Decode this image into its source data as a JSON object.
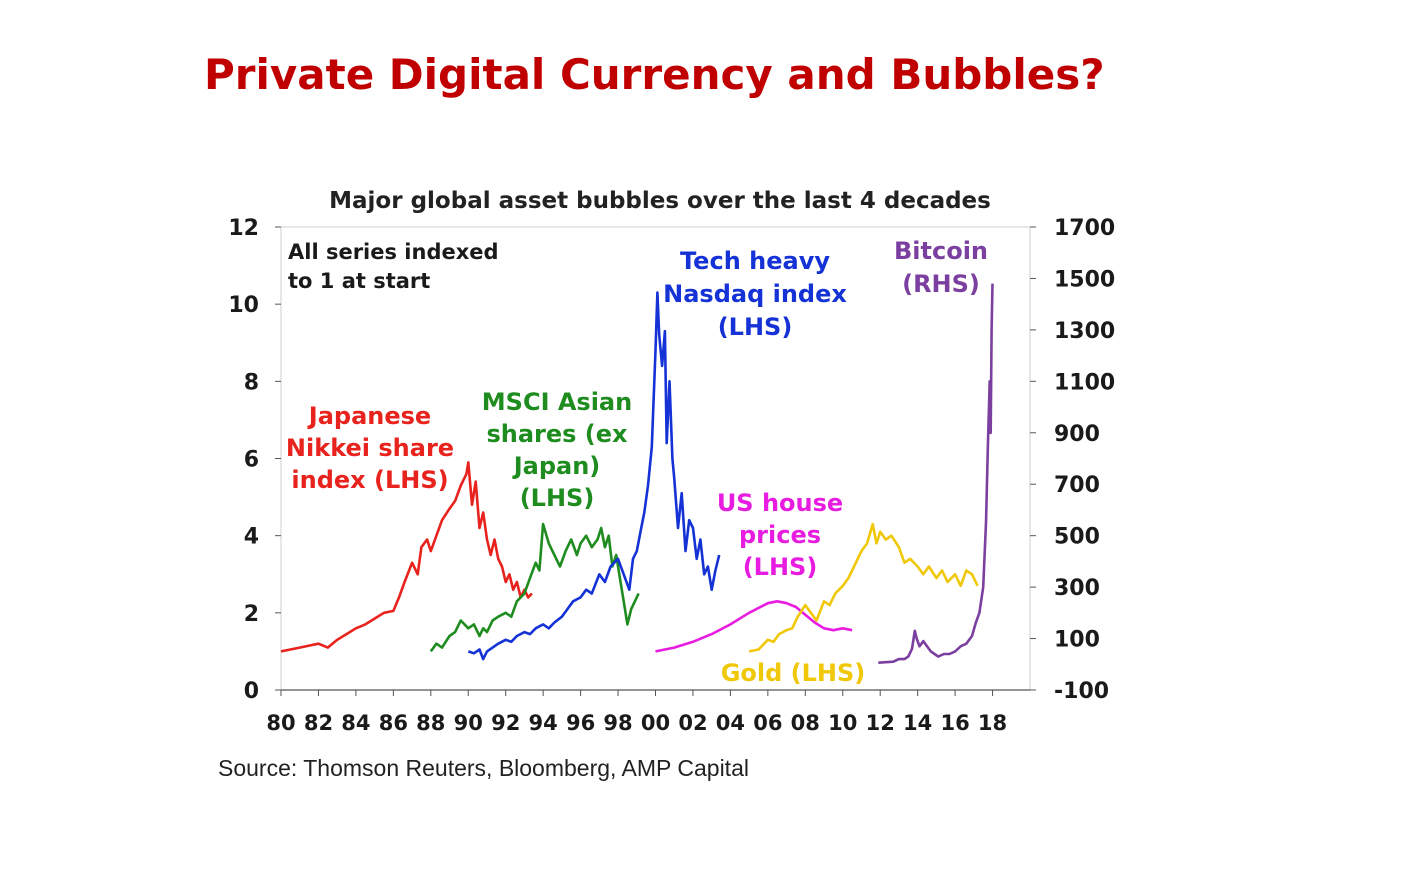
{
  "page": {
    "title": "Private Digital Currency and Bubbles?"
  },
  "chart_data": {
    "type": "line",
    "title": "Major global asset bubbles over the last 4 decades",
    "annotation_lines": [
      "All series indexed",
      "to 1 at start"
    ],
    "source": "Source: Thomson Reuters, Bloomberg, AMP Capital",
    "x_axis": {
      "range": [
        1980,
        2020
      ],
      "ticks": [
        1980,
        1982,
        1984,
        1986,
        1988,
        1990,
        1992,
        1994,
        1996,
        1998,
        2000,
        2002,
        2004,
        2006,
        2008,
        2010,
        2012,
        2014,
        2016,
        2018
      ],
      "tick_labels": [
        "80",
        "82",
        "84",
        "86",
        "88",
        "90",
        "92",
        "94",
        "96",
        "98",
        "00",
        "02",
        "04",
        "06",
        "08",
        "10",
        "12",
        "14",
        "16",
        "18"
      ]
    },
    "y_left": {
      "range": [
        0,
        12
      ],
      "ticks": [
        0,
        2,
        4,
        6,
        8,
        10,
        12
      ],
      "tick_labels": [
        "0",
        "2",
        "4",
        "6",
        "8",
        "10",
        "12"
      ]
    },
    "y_right": {
      "range": [
        -100,
        1700
      ],
      "ticks": [
        -100,
        100,
        300,
        500,
        700,
        900,
        1100,
        1300,
        1500,
        1700
      ],
      "tick_labels": [
        "-100",
        "100",
        "300",
        "500",
        "700",
        "900",
        "1100",
        "1300",
        "1500",
        "1700"
      ]
    },
    "grid": false,
    "series": [
      {
        "name": "Japanese Nikkei share index (LHS)",
        "label_lines": [
          "Japanese",
          "Nikkei share",
          "index (LHS)"
        ],
        "color": "#e8221c",
        "axis": "left",
        "x": [
          1980,
          1980.5,
          1981,
          1981.5,
          1982,
          1982.5,
          1983,
          1983.5,
          1984,
          1984.5,
          1985,
          1985.5,
          1986,
          1986.3,
          1986.6,
          1987,
          1987.3,
          1987.5,
          1987.8,
          1988,
          1988.3,
          1988.6,
          1989,
          1989.3,
          1989.6,
          1989.9,
          1990,
          1990.2,
          1990.4,
          1990.6,
          1990.8,
          1991,
          1991.2,
          1991.4,
          1991.6,
          1991.8,
          1992,
          1992.2,
          1992.4,
          1992.6,
          1992.8,
          1993,
          1993.2,
          1993.4
        ],
        "y": [
          1.0,
          1.05,
          1.1,
          1.15,
          1.2,
          1.1,
          1.3,
          1.45,
          1.6,
          1.7,
          1.85,
          2.0,
          2.05,
          2.4,
          2.8,
          3.3,
          3.0,
          3.7,
          3.9,
          3.6,
          4.0,
          4.4,
          4.7,
          4.9,
          5.3,
          5.6,
          5.9,
          4.8,
          5.4,
          4.2,
          4.6,
          3.9,
          3.5,
          3.9,
          3.4,
          3.2,
          2.8,
          3.0,
          2.6,
          2.8,
          2.4,
          2.6,
          2.4,
          2.5
        ]
      },
      {
        "name": "MSCI Asian shares (ex Japan) (LHS)",
        "label_lines": [
          "MSCI Asian",
          "shares (ex",
          "Japan)",
          "(LHS)"
        ],
        "color": "#1e8c1e",
        "axis": "left",
        "x": [
          1988,
          1988.3,
          1988.6,
          1989,
          1989.3,
          1989.6,
          1990,
          1990.3,
          1990.6,
          1990.8,
          1991,
          1991.3,
          1991.6,
          1992,
          1992.3,
          1992.6,
          1993,
          1993.3,
          1993.6,
          1993.8,
          1994,
          1994.3,
          1994.6,
          1994.9,
          1995.2,
          1995.5,
          1995.8,
          1996,
          1996.3,
          1996.6,
          1996.9,
          1997.1,
          1997.3,
          1997.5,
          1997.7,
          1997.9,
          1998.1,
          1998.3,
          1998.5,
          1998.7,
          1998.9,
          1999.1
        ],
        "y": [
          1.0,
          1.2,
          1.1,
          1.4,
          1.5,
          1.8,
          1.6,
          1.7,
          1.4,
          1.6,
          1.5,
          1.8,
          1.9,
          2.0,
          1.9,
          2.3,
          2.5,
          2.9,
          3.3,
          3.1,
          4.3,
          3.8,
          3.5,
          3.2,
          3.6,
          3.9,
          3.5,
          3.8,
          4.0,
          3.7,
          3.9,
          4.2,
          3.7,
          4.0,
          3.2,
          3.5,
          2.9,
          2.3,
          1.7,
          2.1,
          2.3,
          2.5
        ]
      },
      {
        "name": "Tech heavy Nasdaq index (LHS)",
        "label_lines": [
          "Tech heavy",
          "Nasdaq index",
          "(LHS)"
        ],
        "color": "#1432d6",
        "axis": "left",
        "x": [
          1990,
          1990.3,
          1990.6,
          1990.8,
          1991,
          1991.3,
          1991.6,
          1992,
          1992.3,
          1992.6,
          1993,
          1993.3,
          1993.6,
          1994,
          1994.3,
          1994.6,
          1995,
          1995.3,
          1995.6,
          1996,
          1996.3,
          1996.6,
          1997,
          1997.3,
          1997.6,
          1998,
          1998.3,
          1998.6,
          1998.8,
          1999,
          1999.2,
          1999.4,
          1999.6,
          1999.8,
          2000,
          2000.1,
          2000.2,
          2000.35,
          2000.5,
          2000.6,
          2000.75,
          2000.9,
          2001,
          2001.2,
          2001.4,
          2001.6,
          2001.8,
          2002,
          2002.2,
          2002.4,
          2002.6,
          2002.8,
          2003,
          2003.2,
          2003.4
        ],
        "y": [
          1.0,
          0.95,
          1.05,
          0.8,
          1.0,
          1.1,
          1.2,
          1.3,
          1.25,
          1.4,
          1.5,
          1.45,
          1.6,
          1.7,
          1.6,
          1.75,
          1.9,
          2.1,
          2.3,
          2.4,
          2.6,
          2.5,
          3.0,
          2.8,
          3.2,
          3.4,
          3.0,
          2.6,
          3.4,
          3.6,
          4.1,
          4.6,
          5.3,
          6.3,
          8.8,
          10.3,
          9.2,
          8.4,
          9.3,
          6.4,
          8.0,
          6.0,
          5.5,
          4.2,
          5.1,
          3.6,
          4.4,
          4.2,
          3.4,
          3.9,
          3.0,
          3.2,
          2.6,
          3.1,
          3.5
        ]
      },
      {
        "name": "US house prices (LHS)",
        "label_lines": [
          "US house",
          "prices",
          "(LHS)"
        ],
        "color": "#e81ce0",
        "axis": "left",
        "x": [
          2000,
          2001,
          2002,
          2003,
          2004,
          2005,
          2006,
          2006.5,
          2007,
          2007.5,
          2008,
          2008.5,
          2009,
          2009.5,
          2010,
          2010.5
        ],
        "y": [
          1.0,
          1.1,
          1.25,
          1.45,
          1.7,
          2.0,
          2.25,
          2.3,
          2.25,
          2.15,
          1.95,
          1.75,
          1.6,
          1.55,
          1.6,
          1.55
        ]
      },
      {
        "name": "Gold (LHS)",
        "label_lines": [
          "Gold (LHS)"
        ],
        "color": "#f0c808",
        "axis": "left",
        "x": [
          2005,
          2005.5,
          2006,
          2006.3,
          2006.6,
          2007,
          2007.3,
          2007.6,
          2008,
          2008.3,
          2008.6,
          2009,
          2009.3,
          2009.6,
          2010,
          2010.3,
          2010.6,
          2011,
          2011.3,
          2011.6,
          2011.8,
          2012,
          2012.3,
          2012.6,
          2013,
          2013.3,
          2013.6,
          2014,
          2014.3,
          2014.6,
          2015,
          2015.3,
          2015.6,
          2016,
          2016.3,
          2016.6,
          2016.9,
          2017.2
        ],
        "y": [
          1.0,
          1.05,
          1.3,
          1.25,
          1.45,
          1.55,
          1.6,
          1.9,
          2.2,
          2.0,
          1.8,
          2.3,
          2.2,
          2.5,
          2.7,
          2.9,
          3.2,
          3.6,
          3.8,
          4.3,
          3.8,
          4.1,
          3.9,
          4.0,
          3.7,
          3.3,
          3.4,
          3.2,
          3.0,
          3.2,
          2.9,
          3.1,
          2.8,
          3.0,
          2.7,
          3.1,
          3.0,
          2.7
        ]
      },
      {
        "name": "Bitcoin (RHS)",
        "label_lines": [
          "Bitcoin",
          "(RHS)"
        ],
        "color": "#7b3fa0",
        "axis": "right",
        "x": [
          2011.9,
          2012.3,
          2012.7,
          2013,
          2013.3,
          2013.5,
          2013.7,
          2013.85,
          2013.95,
          2014.1,
          2014.3,
          2014.5,
          2014.7,
          2014.9,
          2015.1,
          2015.4,
          2015.7,
          2016,
          2016.3,
          2016.6,
          2016.9,
          2017.1,
          2017.3,
          2017.5,
          2017.65,
          2017.75,
          2017.85,
          2017.9,
          2017.95,
          2018
        ],
        "y": [
          6,
          8,
          10,
          20,
          20,
          30,
          60,
          130,
          100,
          70,
          90,
          70,
          50,
          40,
          30,
          40,
          40,
          50,
          70,
          80,
          110,
          160,
          200,
          300,
          550,
          850,
          1100,
          900,
          1300,
          1480
        ]
      }
    ]
  }
}
